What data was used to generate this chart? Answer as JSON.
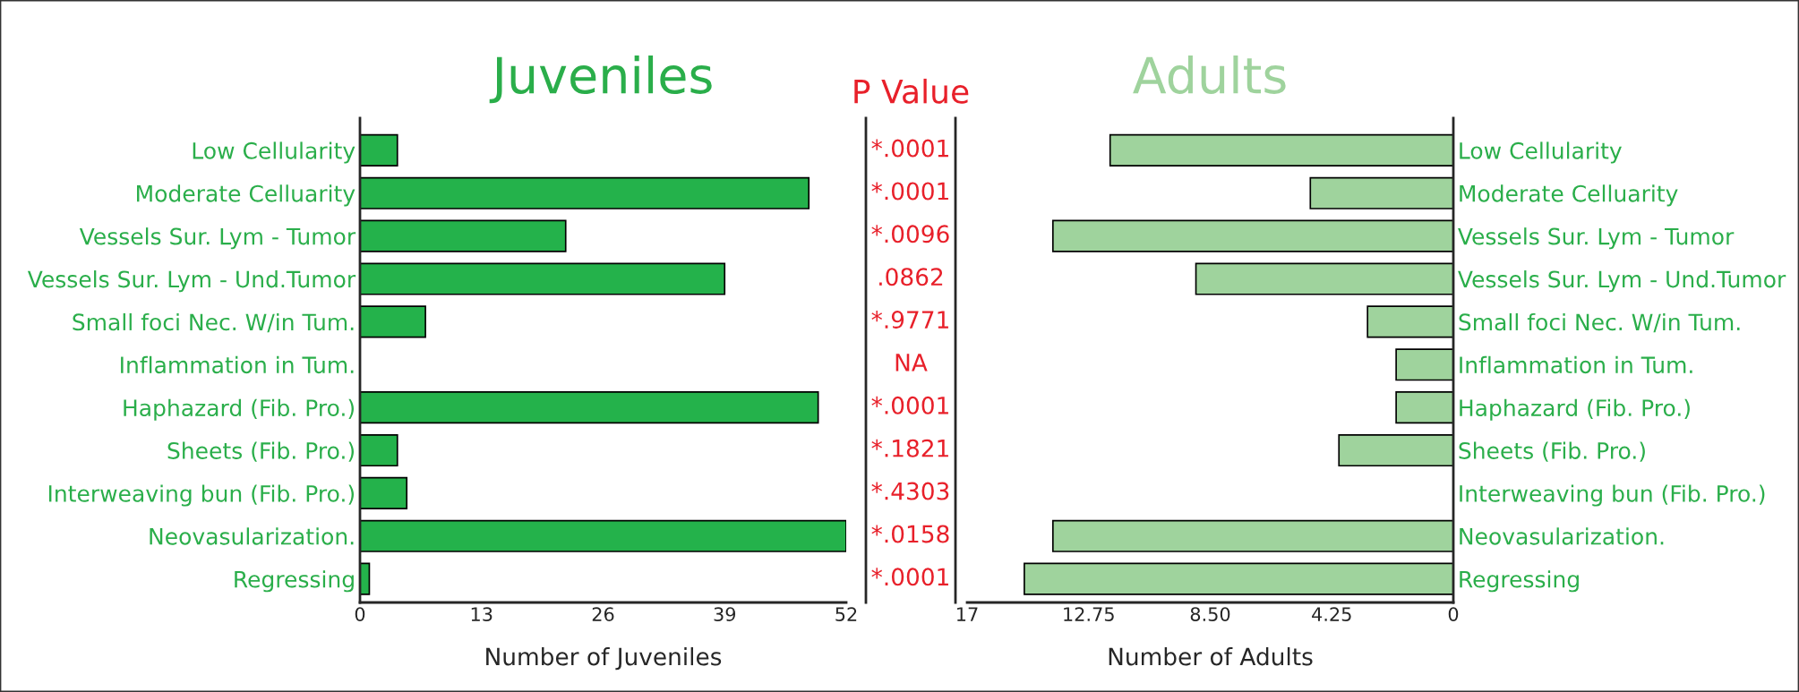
{
  "chart_data": [
    {
      "type": "bar",
      "orientation": "horizontal",
      "title": "Juveniles",
      "xlabel": "Number of Juveniles",
      "categories": [
        "Low Cellularity",
        "Moderate Celluarity",
        "Vessels Sur. Lym - Tumor",
        "Vessels Sur. Lym - Und.Tumor",
        "Small foci Nec. W/in Tum.",
        "Inflammation in Tum.",
        "Haphazard (Fib. Pro.)",
        "Sheets (Fib. Pro.)",
        "Interweaving bun (Fib. Pro.)",
        "Neovasularization.",
        "Regressing"
      ],
      "values": [
        4,
        48,
        22,
        39,
        7,
        0,
        49,
        4,
        5,
        52,
        1
      ],
      "color": "#24b24b",
      "xlim": [
        0,
        52
      ],
      "xticks": [
        0,
        13,
        26,
        39,
        52
      ]
    },
    {
      "type": "other",
      "title": "P Value",
      "annotations": [
        "*.0001",
        "*.0001",
        "*.0096",
        ".0862",
        "*.9771",
        "NA",
        "*.0001",
        "*.1821",
        "*.4303",
        "*.0158",
        "*.0001"
      ]
    },
    {
      "type": "bar",
      "orientation": "horizontal",
      "title": "Adults",
      "xlabel": "Number of Adults",
      "categories": [
        "Low Cellularity",
        "Moderate Celluarity",
        "Vessels Sur. Lym - Tumor",
        "Vessels Sur. Lym - Und.Tumor",
        "Small foci Nec. W/in Tum.",
        "Inflammation in Tum.",
        "Haphazard (Fib. Pro.)",
        "Sheets (Fib. Pro.)",
        "Interweaving bun (Fib. Pro.)",
        "Neovasularization.",
        "Regressing"
      ],
      "values": [
        12,
        5,
        14,
        9,
        3,
        2,
        2,
        4,
        0,
        14,
        15
      ],
      "color": "#9fd39d",
      "xlim": [
        17,
        0
      ],
      "xticks": [
        17,
        12.75,
        {
          "value": 8.5,
          "label": "8.50"
        },
        4.25,
        0
      ]
    }
  ]
}
